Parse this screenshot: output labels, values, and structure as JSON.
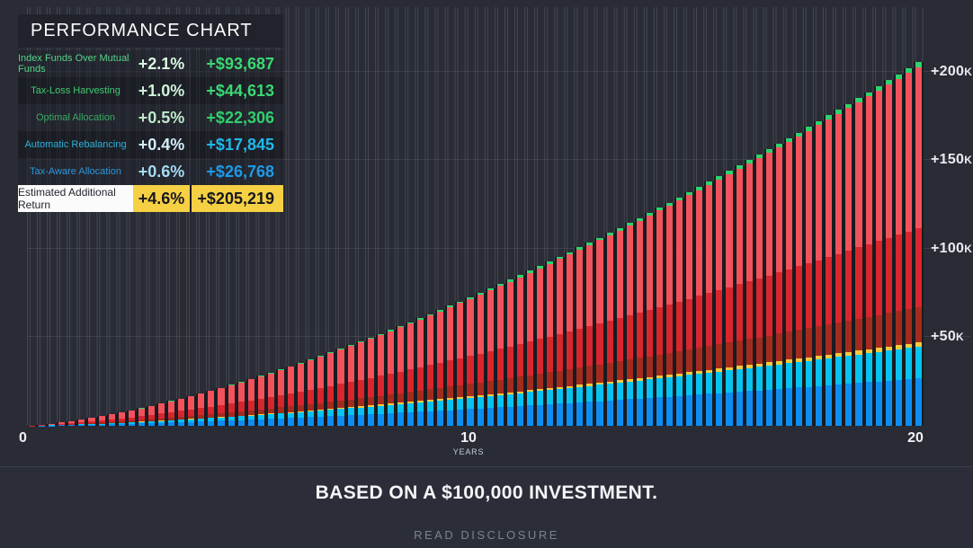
{
  "header": {
    "title": "PERFORMANCE CHART"
  },
  "legend": {
    "rows": [
      {
        "label": "Index Funds Over Mutual Funds",
        "pct": "+2.1%",
        "amount": "+$93,687",
        "label_color": "#56d388",
        "pct_color": "#d9f6e3",
        "amount_color": "#3bd873",
        "highlight": false
      },
      {
        "label": "Tax-Loss Harvesting",
        "pct": "+1.0%",
        "amount": "+$44,613",
        "label_color": "#3fca70",
        "pct_color": "#cef2d9",
        "amount_color": "#3bd873",
        "highlight": false
      },
      {
        "label": "Optimal Allocation",
        "pct": "+0.5%",
        "amount": "+$22,306",
        "label_color": "#38a864",
        "pct_color": "#bfe9cb",
        "amount_color": "#31d06d",
        "highlight": false
      },
      {
        "label": "Automatic Rebalancing",
        "pct": "+0.4%",
        "amount": "+$17,845",
        "label_color": "#2bb3d9",
        "pct_color": "#d3effa",
        "amount_color": "#1fb9ec",
        "highlight": false
      },
      {
        "label": "Tax-Aware Allocation",
        "pct": "+0.6%",
        "amount": "+$26,768",
        "label_color": "#2b97dd",
        "pct_color": "#a6daf5",
        "amount_color": "#1e9ae8",
        "highlight": false
      },
      {
        "label": "Estimated Additional Return",
        "pct": "+4.6%",
        "amount": "+$205,219",
        "label_color": "#23262c",
        "pct_color": "#15171c",
        "amount_color": "#15171c",
        "highlight": true
      }
    ]
  },
  "chart_data": {
    "type": "stacked-bar",
    "title": "PERFORMANCE CHART",
    "base_investment_usd": 100000,
    "estimated_additional_return_usd": 205219,
    "bar_count": 90,
    "growth_shape": "value(t) = 205219 × (t/20)^1.5, t in years 0–20",
    "x_axis": {
      "label": "YEARS",
      "range_years": [
        0,
        20
      ],
      "ticks": [
        "0",
        "10",
        "20"
      ]
    },
    "y_axis": {
      "range_usd": [
        0,
        210000
      ],
      "ticks": [
        {
          "label": "+50K",
          "value": 50000
        },
        {
          "label": "+100K",
          "value": 100000
        },
        {
          "label": "+150K",
          "value": 150000
        },
        {
          "label": "+200K",
          "value": 200000
        }
      ]
    },
    "series_bottom_to_top": [
      {
        "name": "Tax-Aware Allocation",
        "amount_usd": 26768,
        "fraction": 0.13044,
        "color": "#0d8df2"
      },
      {
        "name": "Automatic Rebalancing",
        "amount_usd": 17845,
        "fraction": 0.08696,
        "color": "#06c3f0"
      },
      {
        "name": "gold-divider-stripe",
        "amount_usd": null,
        "fraction": 0.012,
        "color": "#f5c93d"
      },
      {
        "name": "Optimal Allocation",
        "amount_usd": 22306,
        "fraction": 0.0967,
        "color": "#a32b1d"
      },
      {
        "name": "Tax-Loss Harvesting",
        "amount_usd": 44613,
        "fraction": 0.2174,
        "color": "#d9252e"
      },
      {
        "name": "Index Funds Over Mutual Funds",
        "amount_usd": 93687,
        "fraction": 0.4426,
        "color": "#f2525c"
      },
      {
        "name": "green-cap",
        "amount_usd": null,
        "fraction": 0.013,
        "color": "#2ed36e"
      }
    ],
    "legend_position": "top-left",
    "grid": {
      "vertical": true,
      "horizontal": true
    }
  },
  "x_axis_labels": {
    "start": "0",
    "mid": "10",
    "end": "20",
    "unit": "YEARS"
  },
  "footer": {
    "headline": "BASED ON A $100,000 INVESTMENT.",
    "disclosure": "READ DISCLOSURE"
  },
  "colors": {
    "background": "#2a2d36",
    "gridline": "rgba(255,255,255,0.13)",
    "highlight_yellow": "#f6d043",
    "highlight_white": "#fbfbfc"
  }
}
